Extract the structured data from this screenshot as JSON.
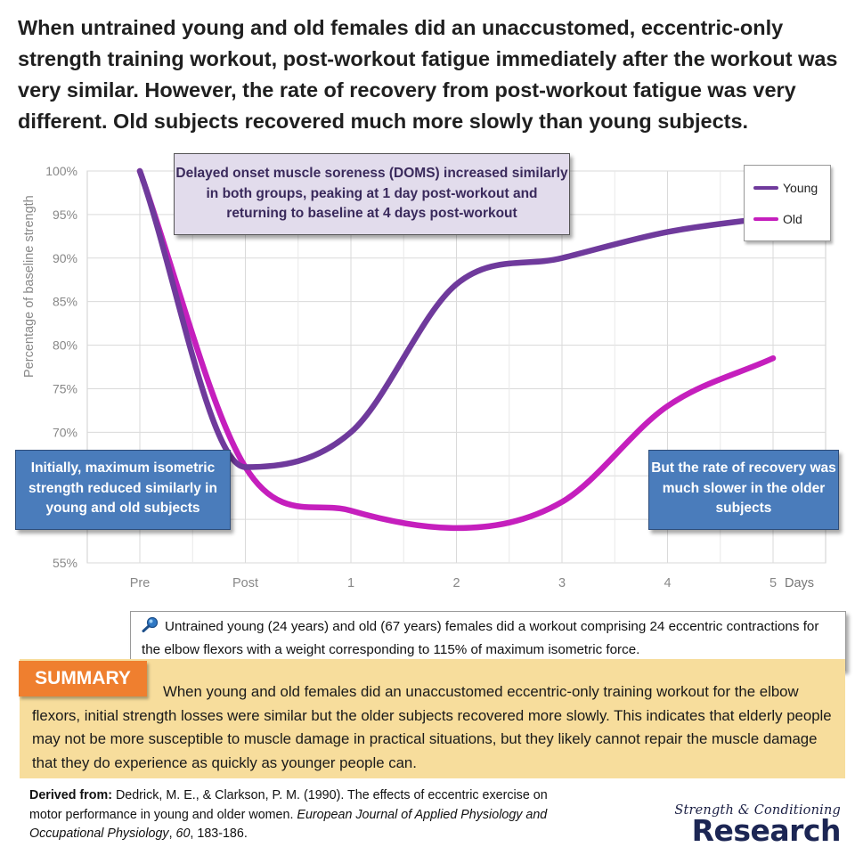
{
  "headline": "When untrained young and old females did an unaccustomed, eccentric-only strength training workout, post-workout fatigue immediately after the workout was very similar. However, the rate of recovery from post-workout fatigue was very different. Old subjects recovered much more slowly than young subjects.",
  "callouts": {
    "doms": "Delayed onset muscle soreness (DOMS) increased similarly in both groups, peaking at 1 day post-workout and returning to baseline at 4 days post-workout",
    "initial": "Initially, maximum isometric strength reduced similarly in young and old subjects",
    "recovery": "But the rate of recovery was much slower in the older subjects"
  },
  "method_note": "Untrained young (24 years) and old (67 years) females did a workout comprising 24 eccentric contractions for the elbow flexors with a weight corresponding to 115% of maximum isometric force.",
  "summary": {
    "label": "SUMMARY",
    "text": "When young and old females did an unaccustomed eccentric-only training workout for the elbow flexors, initial strength losses were similar but the older subjects recovered more slowly. This indicates that elderly people may not be more susceptible to muscle damage in practical situations, but they likely cannot repair the muscle damage that they do experience as quickly as younger people can."
  },
  "reference": {
    "lead": "Derived from:",
    "authors": "Dedrick, M. E., & Clarkson, P. M. (1990). The effects of eccentric exercise on motor performance in young and older women. ",
    "journal": "European Journal of Applied Physiology and Occupational Physiology",
    "sep": ", ",
    "volume": "60",
    "pages": ", 183-186."
  },
  "brand": {
    "top": "Strength & Conditioning",
    "bottom": "Research"
  },
  "colors": {
    "young": "#6f3a9c",
    "old": "#c51fbd",
    "orange": "#ef7f2f",
    "summary_bg": "#f7dd9c",
    "callout_blue": "#4a7cbb",
    "doms_bg": "#e2dcec"
  },
  "icons": {
    "method": "magnifier-icon"
  },
  "chart_data": {
    "type": "line",
    "title": "",
    "xlabel": "Days",
    "ylabel": "Percentage of baseline strength",
    "categories": [
      "Pre",
      "Post",
      "1",
      "2",
      "3",
      "4",
      "5"
    ],
    "y_ticks": [
      "55%",
      "60%",
      "65%",
      "70%",
      "75%",
      "80%",
      "85%",
      "90%",
      "95%",
      "100%"
    ],
    "ylim": [
      55,
      100
    ],
    "grid": true,
    "legend_position": "top-right",
    "series": [
      {
        "name": "Young",
        "color": "#6f3a9c",
        "values": [
          100,
          66,
          70,
          87,
          90,
          93,
          94.7
        ]
      },
      {
        "name": "Old",
        "color": "#c51fbd",
        "values": [
          100,
          66,
          61,
          59,
          62,
          73,
          78.5
        ]
      }
    ]
  }
}
